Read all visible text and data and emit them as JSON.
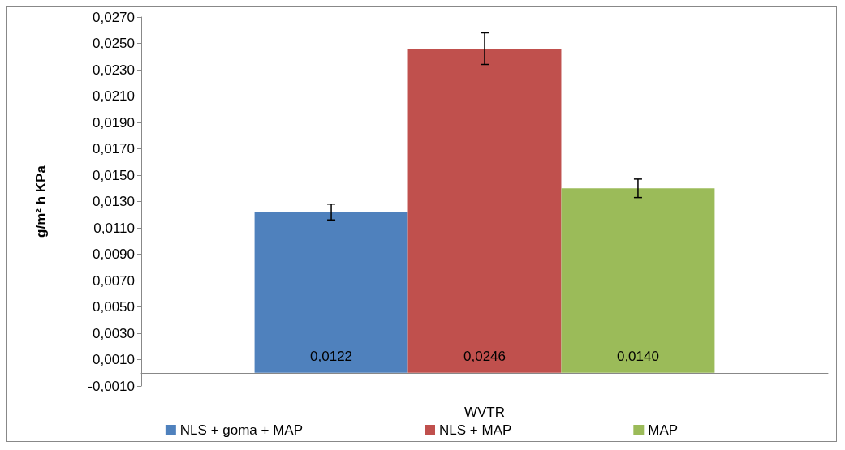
{
  "chart_data": {
    "type": "bar",
    "categories": [
      "WVTR"
    ],
    "ylabel": "g/m² h KPa",
    "series": [
      {
        "name": "NLS + goma + MAP",
        "color": "#4f81bd",
        "values": [
          0.0122
        ],
        "errors": [
          0.0006
        ],
        "value_labels": [
          "0,0122"
        ]
      },
      {
        "name": "NLS + MAP",
        "color": "#c0504d",
        "values": [
          0.0246
        ],
        "errors": [
          0.0012
        ],
        "value_labels": [
          "0,0246"
        ]
      },
      {
        "name": "MAP",
        "color": "#9bbb59",
        "values": [
          0.014
        ],
        "errors": [
          0.0007
        ],
        "value_labels": [
          "0,0140"
        ]
      }
    ],
    "ylim": [
      -0.001,
      0.027
    ],
    "yticks": [
      {
        "value": -0.001,
        "label": "-0,0010"
      },
      {
        "value": 0.001,
        "label": "0,0010"
      },
      {
        "value": 0.003,
        "label": "0,0030"
      },
      {
        "value": 0.005,
        "label": "0,0050"
      },
      {
        "value": 0.007,
        "label": "0,0070"
      },
      {
        "value": 0.009,
        "label": "0,0090"
      },
      {
        "value": 0.011,
        "label": "0,0110"
      },
      {
        "value": 0.013,
        "label": "0,0130"
      },
      {
        "value": 0.015,
        "label": "0,0150"
      },
      {
        "value": 0.017,
        "label": "0,0170"
      },
      {
        "value": 0.019,
        "label": "0,0190"
      },
      {
        "value": 0.021,
        "label": "0,0210"
      },
      {
        "value": 0.023,
        "label": "0,0230"
      },
      {
        "value": 0.025,
        "label": "0,0250"
      },
      {
        "value": 0.027,
        "label": "0,0270"
      }
    ],
    "grid": false,
    "legend": "bottom"
  }
}
